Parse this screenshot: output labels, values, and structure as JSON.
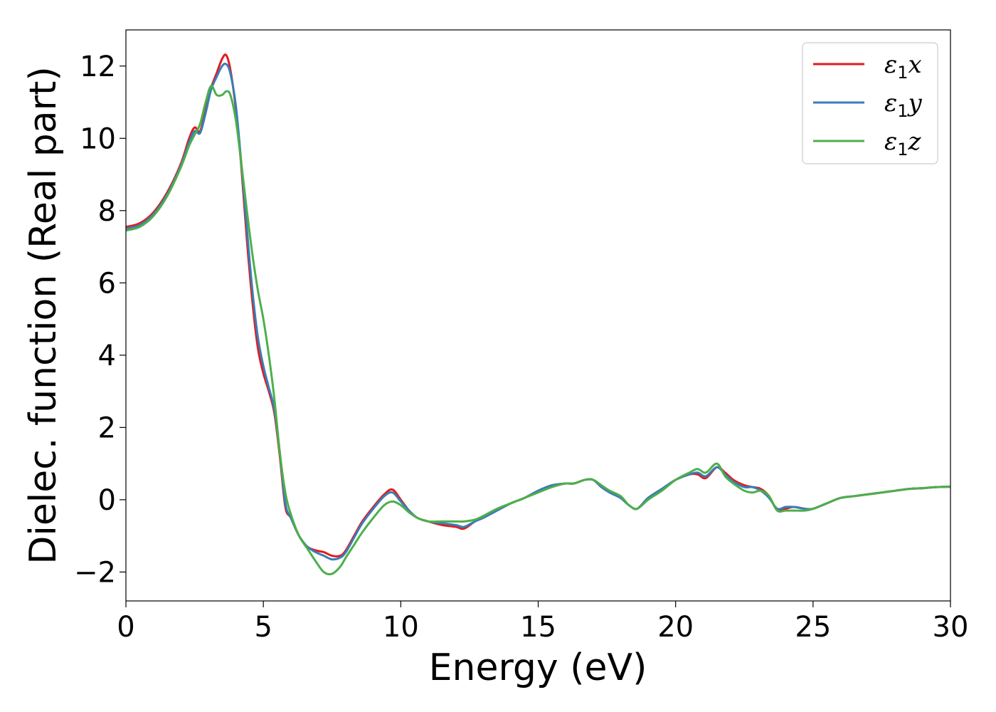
{
  "chart_data": {
    "type": "line",
    "xlabel": "Energy (eV)",
    "ylabel": "Dielec. function (Real part)",
    "xlim": [
      0,
      30
    ],
    "ylim": [
      -2.8,
      13.0
    ],
    "xticks": [
      0,
      5,
      10,
      15,
      20,
      25,
      30
    ],
    "yticks": [
      -2,
      0,
      2,
      4,
      6,
      8,
      10,
      12
    ],
    "grid": false,
    "legend_position": "top-right",
    "series": [
      {
        "name": "ε1x",
        "symbol": "ε",
        "sub": "1",
        "axis": "x",
        "color": "#e41a1c",
        "x": [
          0,
          0.5,
          1.0,
          1.5,
          2.0,
          2.3,
          2.5,
          2.7,
          2.9,
          3.1,
          3.3,
          3.5,
          3.65,
          3.8,
          4.0,
          4.2,
          4.4,
          4.6,
          4.8,
          5.0,
          5.2,
          5.4,
          5.6,
          5.8,
          6.0,
          6.3,
          6.6,
          6.9,
          7.2,
          7.5,
          7.8,
          8.0,
          8.3,
          8.6,
          9.0,
          9.4,
          9.7,
          10.0,
          10.3,
          10.6,
          11.0,
          11.5,
          12.0,
          12.3,
          12.7,
          13.0,
          13.5,
          14.0,
          14.5,
          15.0,
          15.5,
          16.0,
          16.3,
          16.7,
          17.0,
          17.3,
          17.6,
          18.0,
          18.3,
          18.6,
          19.0,
          19.5,
          20.0,
          20.5,
          20.8,
          21.1,
          21.5,
          21.8,
          22.1,
          22.5,
          22.8,
          23.1,
          23.4,
          23.7,
          24.0,
          24.3,
          24.7,
          25.0,
          25.5,
          26.0,
          26.5,
          27.0,
          27.5,
          28.0,
          28.5,
          29.0,
          29.5,
          30.0
        ],
        "y": [
          7.55,
          7.65,
          7.95,
          8.5,
          9.3,
          10.0,
          10.3,
          10.2,
          10.8,
          11.4,
          11.8,
          12.2,
          12.3,
          11.9,
          10.8,
          9.2,
          7.2,
          5.5,
          4.2,
          3.5,
          3.0,
          2.4,
          1.2,
          -0.2,
          -0.5,
          -1.0,
          -1.3,
          -1.4,
          -1.45,
          -1.55,
          -1.55,
          -1.4,
          -1.0,
          -0.6,
          -0.2,
          0.15,
          0.28,
          0.0,
          -0.3,
          -0.5,
          -0.6,
          -0.7,
          -0.75,
          -0.8,
          -0.6,
          -0.5,
          -0.3,
          -0.1,
          0.05,
          0.25,
          0.4,
          0.45,
          0.45,
          0.55,
          0.55,
          0.35,
          0.2,
          0.05,
          -0.15,
          -0.25,
          0.05,
          0.3,
          0.55,
          0.7,
          0.7,
          0.6,
          0.9,
          0.75,
          0.55,
          0.4,
          0.35,
          0.3,
          0.1,
          -0.3,
          -0.25,
          -0.2,
          -0.25,
          -0.25,
          -0.1,
          0.05,
          0.1,
          0.15,
          0.2,
          0.25,
          0.3,
          0.32,
          0.35,
          0.36
        ]
      },
      {
        "name": "ε1y",
        "symbol": "ε",
        "sub": "1",
        "axis": "y",
        "color": "#377eb8",
        "x": [
          0,
          0.5,
          1.0,
          1.5,
          2.0,
          2.3,
          2.5,
          2.7,
          2.9,
          3.1,
          3.3,
          3.5,
          3.65,
          3.8,
          4.0,
          4.2,
          4.4,
          4.6,
          4.8,
          5.0,
          5.2,
          5.4,
          5.6,
          5.8,
          6.0,
          6.3,
          6.6,
          6.9,
          7.2,
          7.5,
          7.8,
          8.0,
          8.3,
          8.6,
          9.0,
          9.4,
          9.7,
          10.0,
          10.3,
          10.6,
          11.0,
          11.5,
          12.0,
          12.3,
          12.7,
          13.0,
          13.5,
          14.0,
          14.5,
          15.0,
          15.5,
          16.0,
          16.3,
          16.7,
          17.0,
          17.3,
          17.6,
          18.0,
          18.3,
          18.6,
          19.0,
          19.5,
          20.0,
          20.5,
          20.8,
          21.1,
          21.5,
          21.8,
          22.1,
          22.5,
          22.8,
          23.1,
          23.4,
          23.7,
          24.0,
          24.3,
          24.7,
          25.0,
          25.5,
          26.0,
          26.5,
          27.0,
          27.5,
          28.0,
          28.5,
          29.0,
          29.5,
          30.0
        ],
        "y": [
          7.5,
          7.6,
          7.9,
          8.45,
          9.25,
          9.9,
          10.2,
          10.15,
          10.7,
          11.35,
          11.7,
          12.0,
          12.05,
          11.8,
          10.9,
          9.3,
          7.5,
          5.8,
          4.5,
          3.7,
          3.1,
          2.5,
          1.3,
          -0.1,
          -0.5,
          -1.0,
          -1.3,
          -1.45,
          -1.55,
          -1.65,
          -1.6,
          -1.45,
          -1.05,
          -0.65,
          -0.25,
          0.1,
          0.2,
          -0.05,
          -0.3,
          -0.5,
          -0.6,
          -0.65,
          -0.7,
          -0.75,
          -0.6,
          -0.5,
          -0.3,
          -0.1,
          0.05,
          0.25,
          0.4,
          0.45,
          0.45,
          0.55,
          0.55,
          0.35,
          0.2,
          0.05,
          -0.15,
          -0.25,
          0.05,
          0.3,
          0.55,
          0.7,
          0.75,
          0.65,
          0.9,
          0.7,
          0.5,
          0.35,
          0.35,
          0.25,
          0.05,
          -0.25,
          -0.2,
          -0.2,
          -0.25,
          -0.25,
          -0.1,
          0.05,
          0.1,
          0.15,
          0.2,
          0.25,
          0.3,
          0.32,
          0.35,
          0.36
        ]
      },
      {
        "name": "ε1z",
        "symbol": "ε",
        "sub": "1",
        "axis": "z",
        "color": "#4daf4a",
        "x": [
          0,
          0.5,
          1.0,
          1.5,
          2.0,
          2.3,
          2.5,
          2.7,
          2.9,
          3.1,
          3.3,
          3.5,
          3.65,
          3.8,
          4.0,
          4.2,
          4.4,
          4.6,
          4.8,
          5.0,
          5.2,
          5.4,
          5.6,
          5.8,
          6.0,
          6.3,
          6.6,
          6.9,
          7.2,
          7.5,
          7.8,
          8.0,
          8.3,
          8.6,
          9.0,
          9.4,
          9.7,
          10.0,
          10.3,
          10.6,
          11.0,
          11.5,
          12.0,
          12.3,
          12.7,
          13.0,
          13.5,
          14.0,
          14.5,
          15.0,
          15.5,
          16.0,
          16.3,
          16.7,
          17.0,
          17.3,
          17.6,
          18.0,
          18.3,
          18.6,
          19.0,
          19.5,
          20.0,
          20.5,
          20.8,
          21.1,
          21.5,
          21.8,
          22.1,
          22.5,
          22.8,
          23.1,
          23.4,
          23.7,
          24.0,
          24.3,
          24.7,
          25.0,
          25.5,
          26.0,
          26.5,
          27.0,
          27.5,
          28.0,
          28.5,
          29.0,
          29.5,
          30.0
        ],
        "y": [
          7.45,
          7.55,
          7.85,
          8.4,
          9.2,
          9.8,
          10.1,
          10.4,
          11.0,
          11.45,
          11.2,
          11.2,
          11.3,
          11.2,
          10.5,
          9.3,
          8.0,
          6.8,
          5.8,
          5.0,
          4.0,
          2.8,
          1.3,
          0.2,
          -0.4,
          -1.0,
          -1.35,
          -1.7,
          -2.0,
          -2.05,
          -1.85,
          -1.6,
          -1.25,
          -0.9,
          -0.5,
          -0.15,
          -0.05,
          -0.15,
          -0.35,
          -0.5,
          -0.6,
          -0.6,
          -0.6,
          -0.6,
          -0.55,
          -0.45,
          -0.25,
          -0.1,
          0.05,
          0.2,
          0.35,
          0.45,
          0.45,
          0.55,
          0.55,
          0.4,
          0.25,
          0.1,
          -0.15,
          -0.25,
          0.0,
          0.25,
          0.55,
          0.75,
          0.85,
          0.75,
          1.0,
          0.65,
          0.45,
          0.25,
          0.2,
          0.25,
          0.1,
          -0.3,
          -0.3,
          -0.3,
          -0.3,
          -0.25,
          -0.1,
          0.05,
          0.1,
          0.15,
          0.2,
          0.25,
          0.3,
          0.32,
          0.35,
          0.36
        ]
      }
    ]
  }
}
